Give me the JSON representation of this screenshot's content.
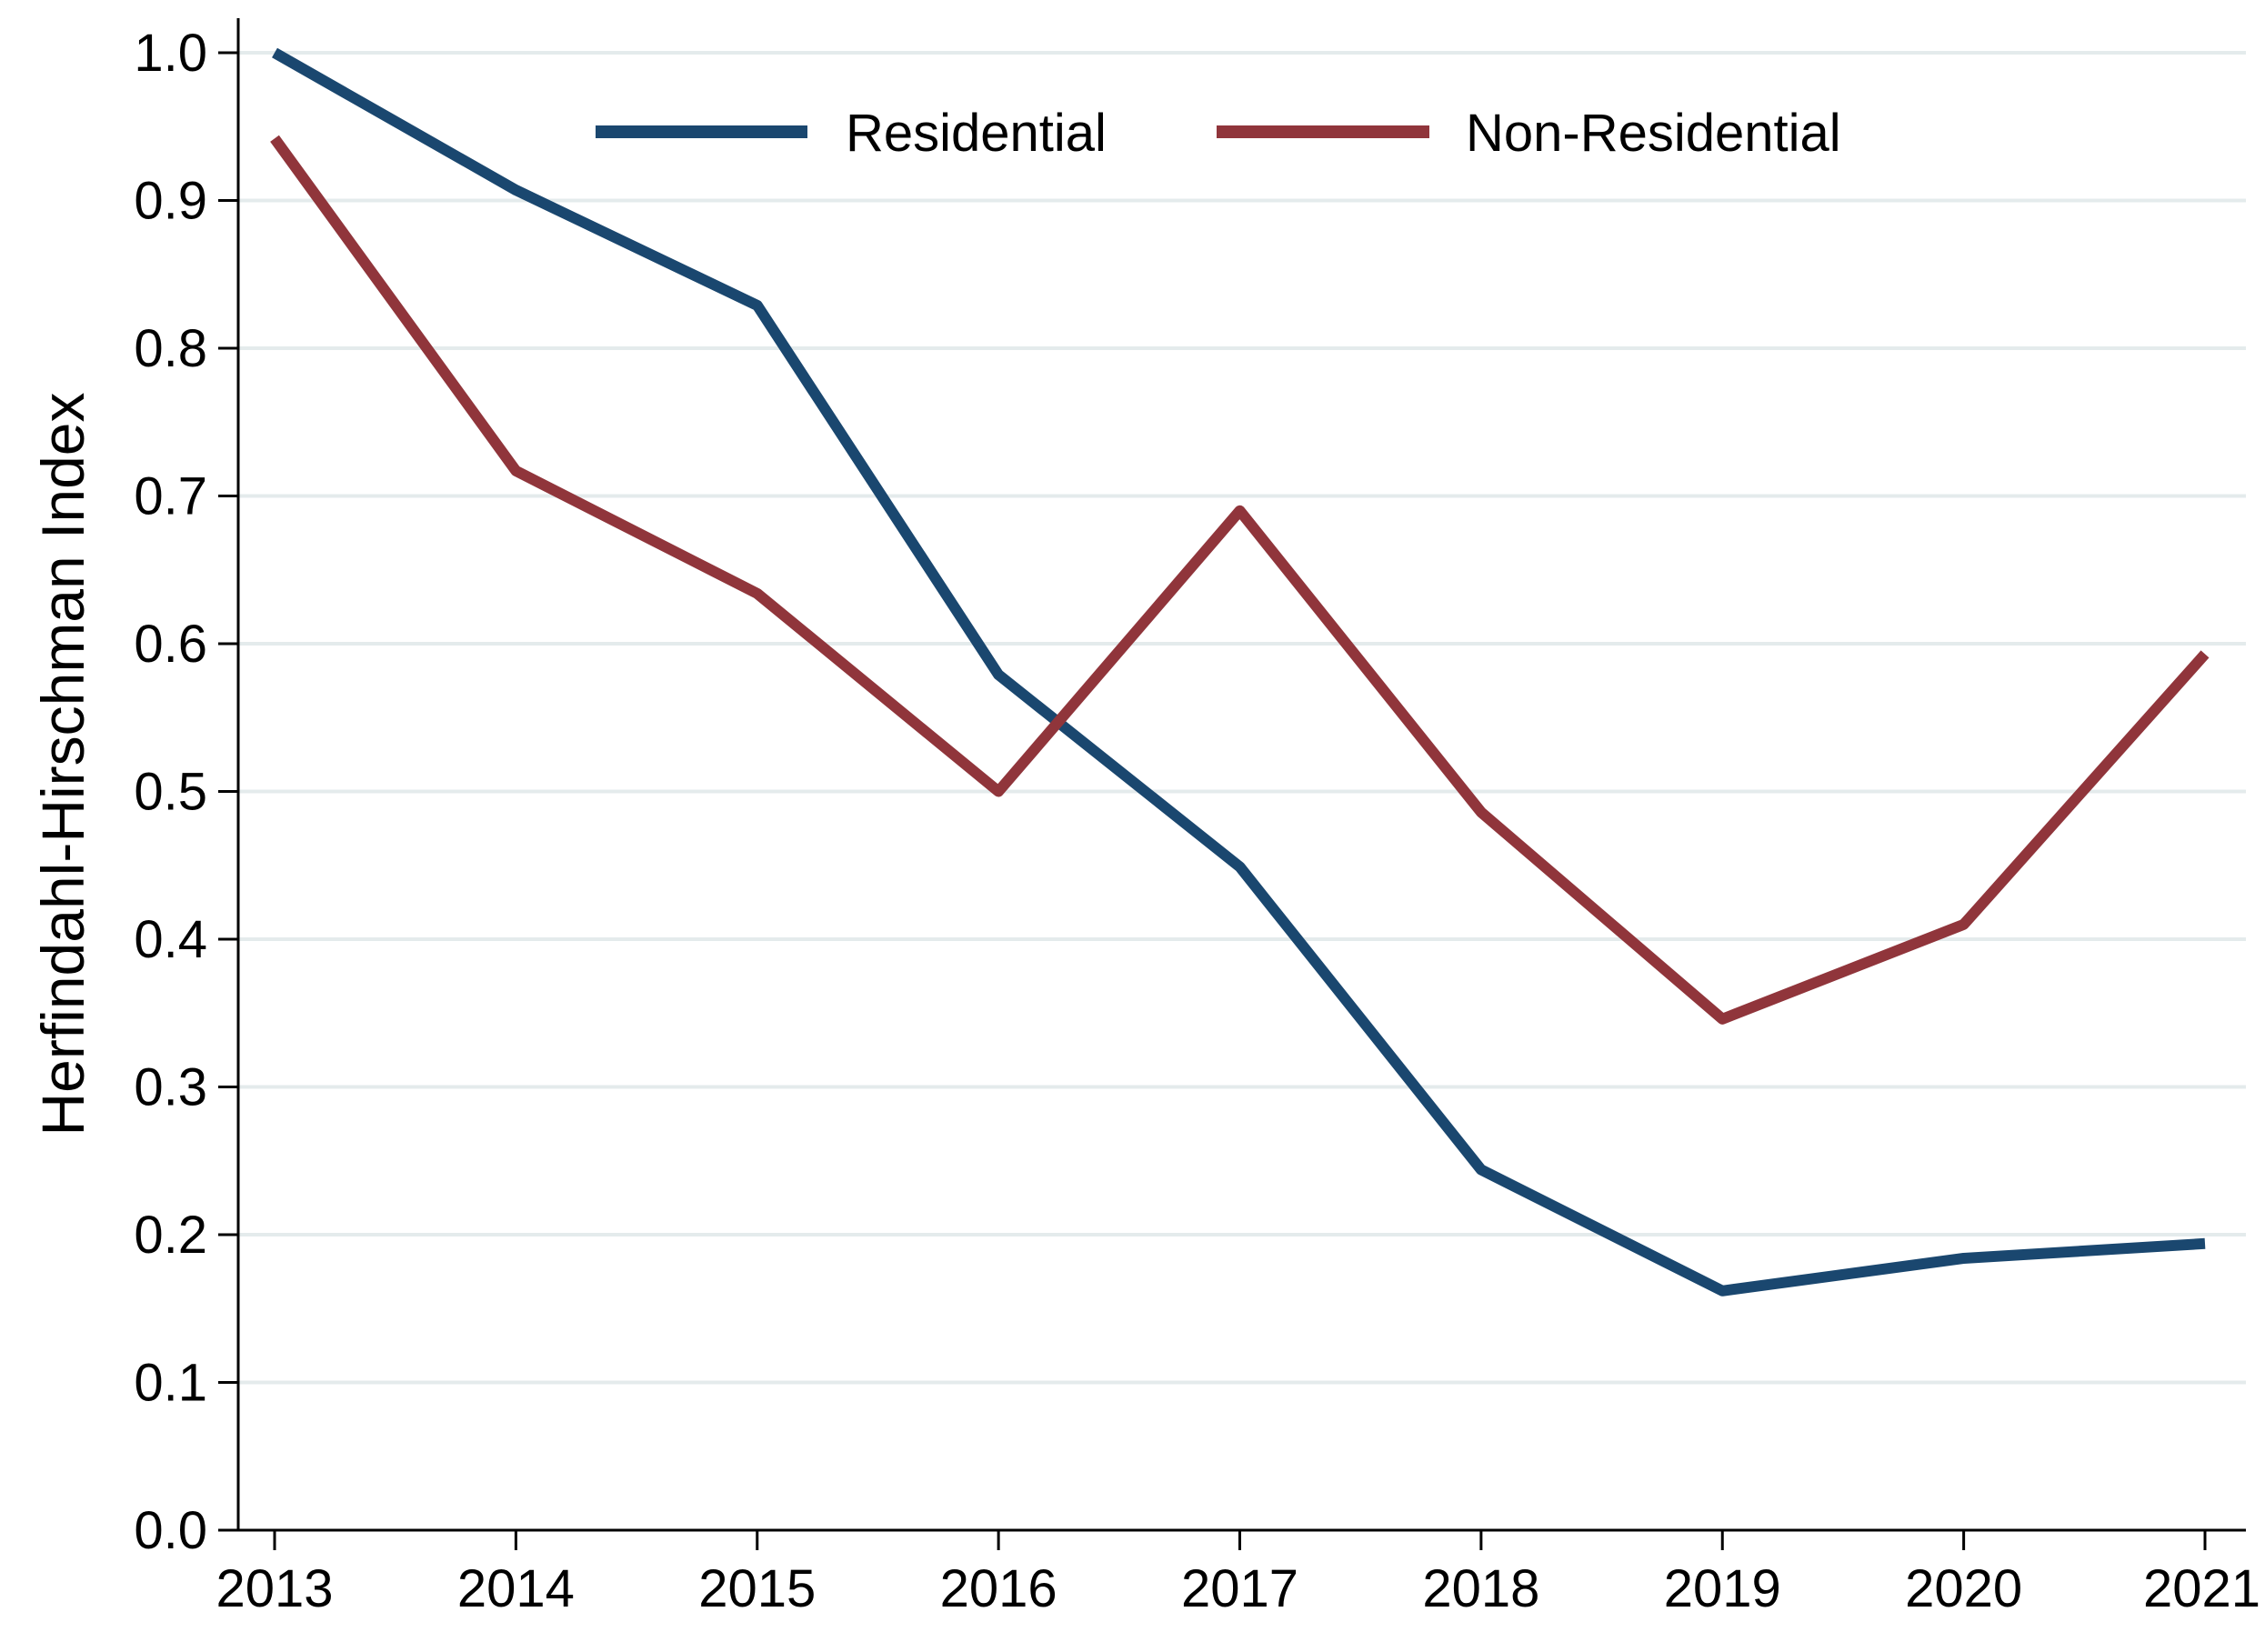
{
  "chart_data": {
    "type": "line",
    "ylabel": "Herfindahl-Hirschman Index",
    "xlabel": "",
    "x": [
      "2013",
      "2014",
      "2015",
      "2016",
      "2017",
      "2018",
      "2019",
      "2020",
      "2021"
    ],
    "ylim": [
      0,
      1
    ],
    "yticks": [
      "0.0",
      "0.1",
      "0.2",
      "0.3",
      "0.4",
      "0.5",
      "0.6",
      "0.7",
      "0.8",
      "0.9",
      "1.0"
    ],
    "grid": true,
    "legend_position": "top",
    "series": [
      {
        "name": "Residential",
        "color": "#1a476f",
        "values": [
          1.0,
          0.907,
          0.829,
          0.579,
          0.449,
          0.244,
          0.162,
          0.184,
          0.194
        ]
      },
      {
        "name": "Non-Residential",
        "color": "#90353b",
        "values": [
          0.942,
          0.717,
          0.634,
          0.5,
          0.69,
          0.486,
          0.346,
          0.41,
          0.593
        ]
      }
    ]
  }
}
